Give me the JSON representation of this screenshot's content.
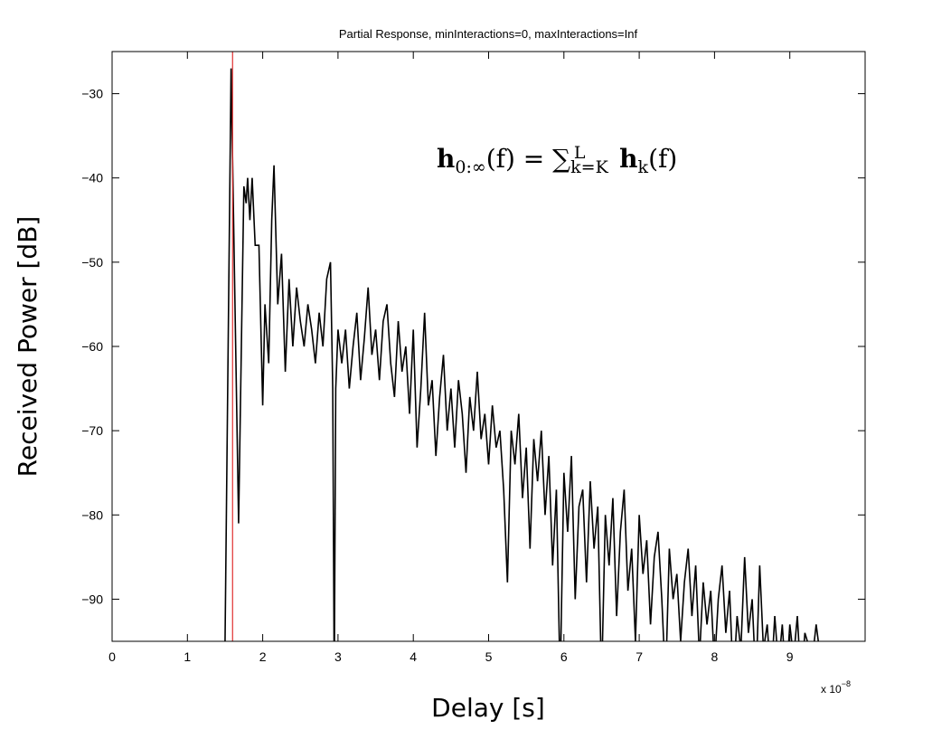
{
  "chart_data": {
    "type": "line",
    "title": "Partial Response, minInteractions=0, maxInteractions=Inf",
    "xlabel": "Delay [s]",
    "ylabel": "Received Power [dB]",
    "x_multiplier": {
      "base": "x 10",
      "exponent": "−8"
    },
    "xlim": [
      0,
      10
    ],
    "xticks": [
      0,
      1,
      2,
      3,
      4,
      5,
      6,
      7,
      8,
      9
    ],
    "ylim": [
      -95,
      -25
    ],
    "yticks": [
      {
        "value": -90,
        "label": "−90"
      },
      {
        "value": -80,
        "label": "−80"
      },
      {
        "value": -70,
        "label": "−70"
      },
      {
        "value": -60,
        "label": "−60"
      },
      {
        "value": -50,
        "label": "−50"
      },
      {
        "value": -40,
        "label": "−40"
      },
      {
        "value": -30,
        "label": "−30"
      }
    ],
    "color": "#000000",
    "marker_x": 1.6,
    "marker_color": "#e03030",
    "annotation": {
      "parts": [
        {
          "text": "h",
          "bold": true
        },
        {
          "text": "0:∞",
          "sub": true
        },
        {
          "text": "(f) = "
        },
        {
          "text": "∑"
        },
        {
          "text": "k=K",
          "sub": true
        },
        {
          "text": "L",
          "sup": true
        },
        {
          "text": " h",
          "bold": true
        },
        {
          "text": "k",
          "sub": true
        },
        {
          "text": "(f)"
        }
      ]
    },
    "x": [
      1.45,
      1.5,
      1.58,
      1.68,
      1.75,
      1.78,
      1.8,
      1.83,
      1.86,
      1.9,
      1.95,
      2.0,
      2.03,
      2.08,
      2.12,
      2.15,
      2.2,
      2.25,
      2.3,
      2.35,
      2.4,
      2.45,
      2.5,
      2.55,
      2.6,
      2.65,
      2.7,
      2.75,
      2.8,
      2.85,
      2.9,
      2.93,
      2.95,
      2.97,
      3.0,
      3.05,
      3.1,
      3.15,
      3.2,
      3.25,
      3.3,
      3.35,
      3.4,
      3.45,
      3.5,
      3.55,
      3.6,
      3.65,
      3.7,
      3.75,
      3.8,
      3.85,
      3.9,
      3.95,
      4.0,
      4.05,
      4.1,
      4.15,
      4.2,
      4.25,
      4.3,
      4.35,
      4.4,
      4.45,
      4.5,
      4.55,
      4.6,
      4.65,
      4.7,
      4.75,
      4.8,
      4.85,
      4.9,
      4.95,
      5.0,
      5.05,
      5.1,
      5.15,
      5.2,
      5.25,
      5.3,
      5.35,
      5.4,
      5.45,
      5.5,
      5.55,
      5.6,
      5.65,
      5.7,
      5.75,
      5.8,
      5.85,
      5.9,
      5.95,
      6.0,
      6.05,
      6.1,
      6.15,
      6.2,
      6.25,
      6.3,
      6.35,
      6.4,
      6.45,
      6.5,
      6.55,
      6.6,
      6.65,
      6.7,
      6.75,
      6.8,
      6.85,
      6.9,
      6.95,
      7.0,
      7.05,
      7.1,
      7.15,
      7.2,
      7.25,
      7.3,
      7.35,
      7.4,
      7.45,
      7.5,
      7.55,
      7.6,
      7.65,
      7.7,
      7.75,
      7.8,
      7.85,
      7.9,
      7.95,
      8.0,
      8.05,
      8.1,
      8.15,
      8.2,
      8.25,
      8.3,
      8.35,
      8.4,
      8.45,
      8.5,
      8.55,
      8.6,
      8.65,
      8.7,
      8.75,
      8.8,
      8.85,
      8.9,
      8.95,
      9.0,
      9.05,
      9.1,
      9.15,
      9.2,
      9.3,
      9.35,
      9.45,
      9.5,
      9.6,
      9.7
    ],
    "values": [
      -100,
      -95,
      -27,
      -81,
      -41,
      -43,
      -40,
      -45,
      -40,
      -48,
      -48,
      -67,
      -55,
      -62,
      -45,
      -38.5,
      -55,
      -49,
      -63,
      -52,
      -60,
      -53,
      -57,
      -60,
      -55,
      -58,
      -62,
      -56,
      -60,
      -52,
      -50,
      -65,
      -100,
      -65,
      -58,
      -62,
      -58,
      -65,
      -60,
      -56,
      -64,
      -59,
      -53,
      -61,
      -58,
      -64,
      -57,
      -55,
      -62,
      -66,
      -57,
      -63,
      -60,
      -68,
      -58,
      -72,
      -65,
      -56,
      -67,
      -64,
      -73,
      -66,
      -61,
      -70,
      -65,
      -72,
      -64,
      -68,
      -75,
      -66,
      -70,
      -63,
      -71,
      -68,
      -74,
      -67,
      -72,
      -70,
      -77,
      -88,
      -70,
      -74,
      -68,
      -78,
      -72,
      -84,
      -71,
      -76,
      -70,
      -80,
      -73,
      -86,
      -77,
      -100,
      -75,
      -82,
      -73,
      -90,
      -79,
      -77,
      -88,
      -76,
      -84,
      -79,
      -100,
      -80,
      -86,
      -78,
      -92,
      -82,
      -77,
      -89,
      -84,
      -95,
      -80,
      -87,
      -83,
      -93,
      -85,
      -82,
      -90,
      -100,
      -84,
      -90,
      -87,
      -95,
      -88,
      -84,
      -92,
      -86,
      -97,
      -88,
      -93,
      -89,
      -98,
      -90,
      -86,
      -94,
      -89,
      -100,
      -92,
      -96,
      -85,
      -94,
      -90,
      -100,
      -86,
      -96,
      -93,
      -100,
      -92,
      -98,
      -93,
      -100,
      -93,
      -97,
      -92,
      -100,
      -94,
      -97,
      -93,
      -100,
      -95,
      -98,
      -95
    ]
  }
}
